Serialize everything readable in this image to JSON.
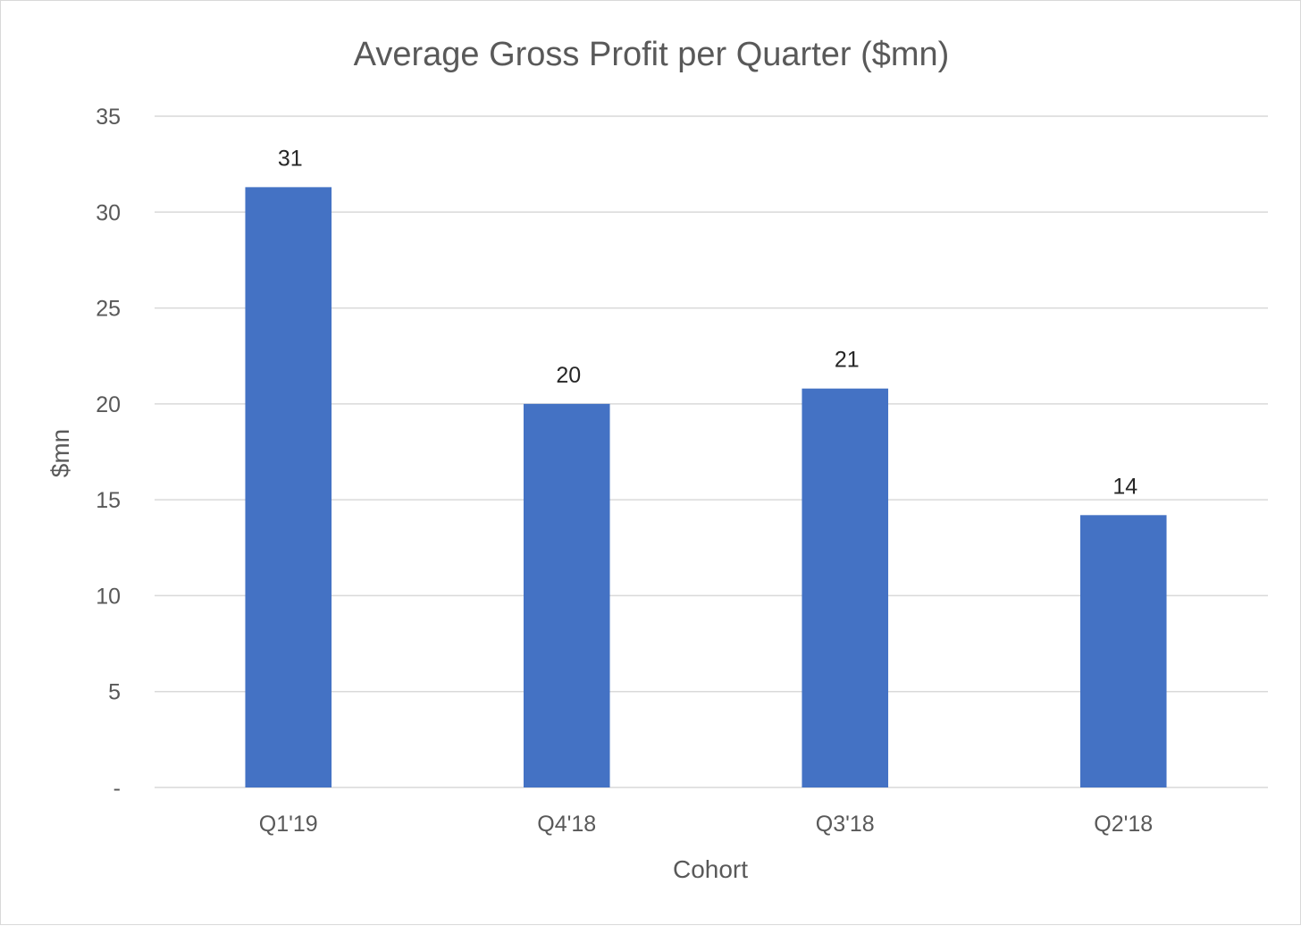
{
  "chart_data": {
    "type": "bar",
    "title": "Average Gross Profit per Quarter ($mn)",
    "xlabel": "Cohort",
    "ylabel": "$mn",
    "categories": [
      "Q1'19",
      "Q4'18",
      "Q3'18",
      "Q2'18"
    ],
    "values": [
      31.3,
      20.0,
      20.8,
      14.2
    ],
    "data_labels": [
      "31",
      "20",
      "21",
      "14"
    ],
    "ylim": [
      0,
      35
    ],
    "yticks": [
      0,
      5,
      10,
      15,
      20,
      25,
      30,
      35
    ],
    "ytick_labels": [
      "-",
      "5",
      "10",
      "15",
      "20",
      "25",
      "30",
      "35"
    ],
    "grid": true,
    "legend": "none",
    "bar_color": "#4472C4"
  }
}
